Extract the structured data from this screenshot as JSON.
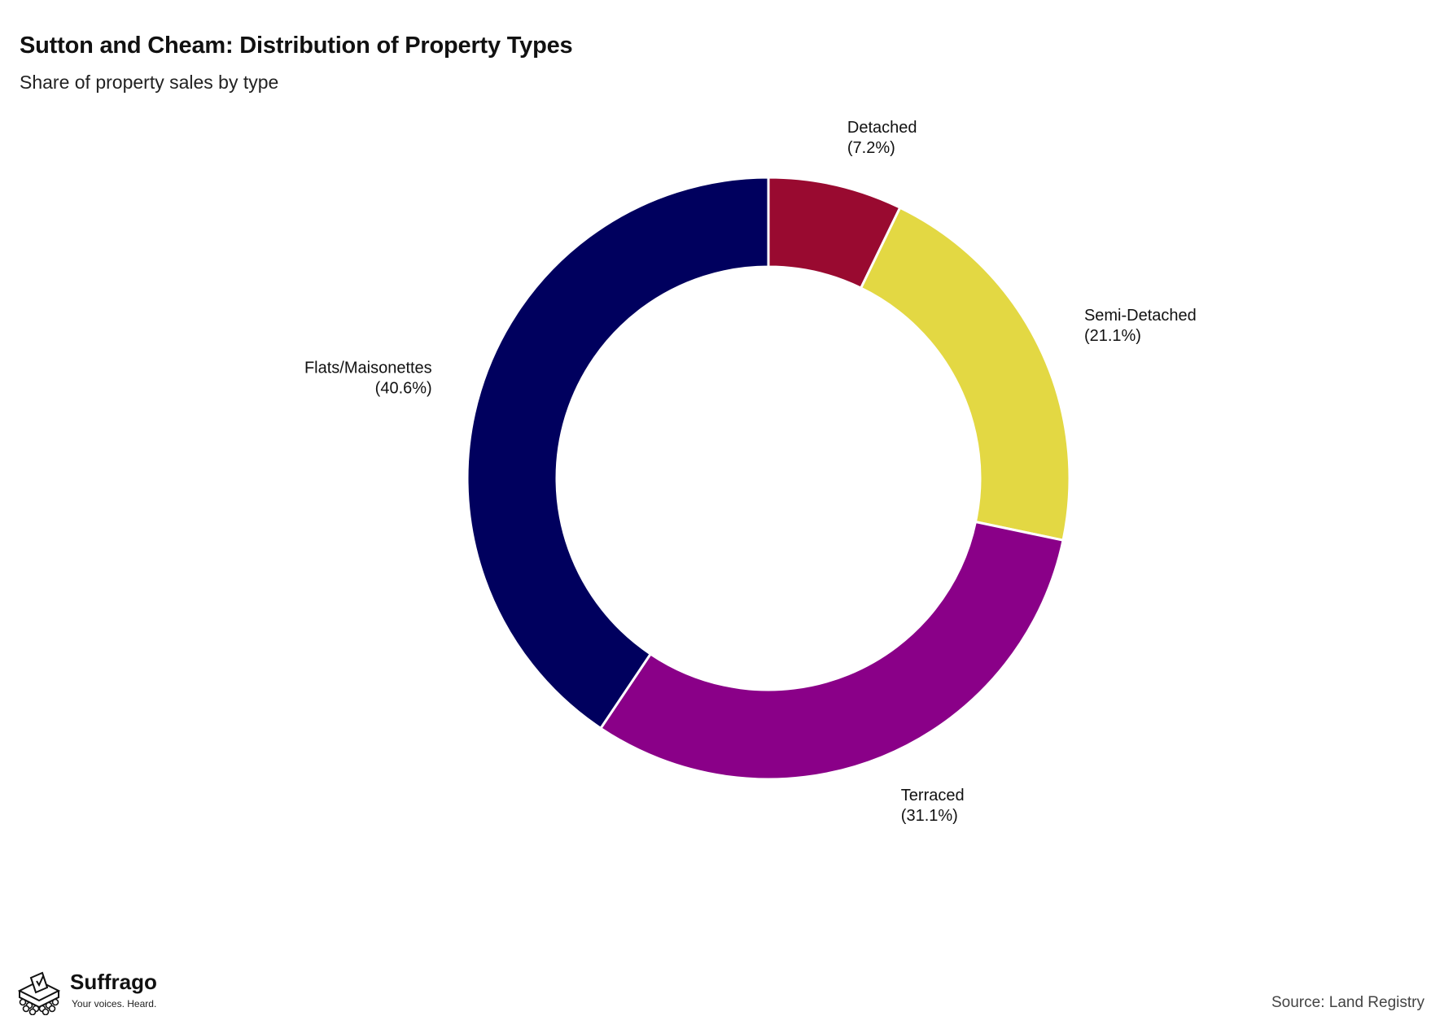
{
  "header": {
    "title": "Sutton and Cheam: Distribution of Property Types",
    "subtitle": "Share of property sales by type"
  },
  "chart_data": {
    "type": "pie",
    "variant": "donut",
    "title": "Sutton and Cheam: Distribution of Property Types",
    "subtitle": "Share of property sales by type",
    "unit": "%",
    "slices": [
      {
        "label": "Detached",
        "value": 7.2,
        "value_label": "(7.2%)",
        "color": "#990a30"
      },
      {
        "label": "Semi-Detached",
        "value": 21.1,
        "value_label": "(21.1%)",
        "color": "#e3d843"
      },
      {
        "label": "Terraced",
        "value": 31.1,
        "value_label": "(31.1%)",
        "color": "#8a0088"
      },
      {
        "label": "Flats/Maisonettes",
        "value": 40.6,
        "value_label": "(40.6%)",
        "color": "#00005e"
      }
    ],
    "start_angle": "12 o'clock",
    "direction": "clockwise",
    "legend": "none"
  },
  "footer": {
    "brand_name": "Suffrago",
    "brand_tagline": "Your voices. Heard.",
    "source": "Source: Land Registry"
  }
}
